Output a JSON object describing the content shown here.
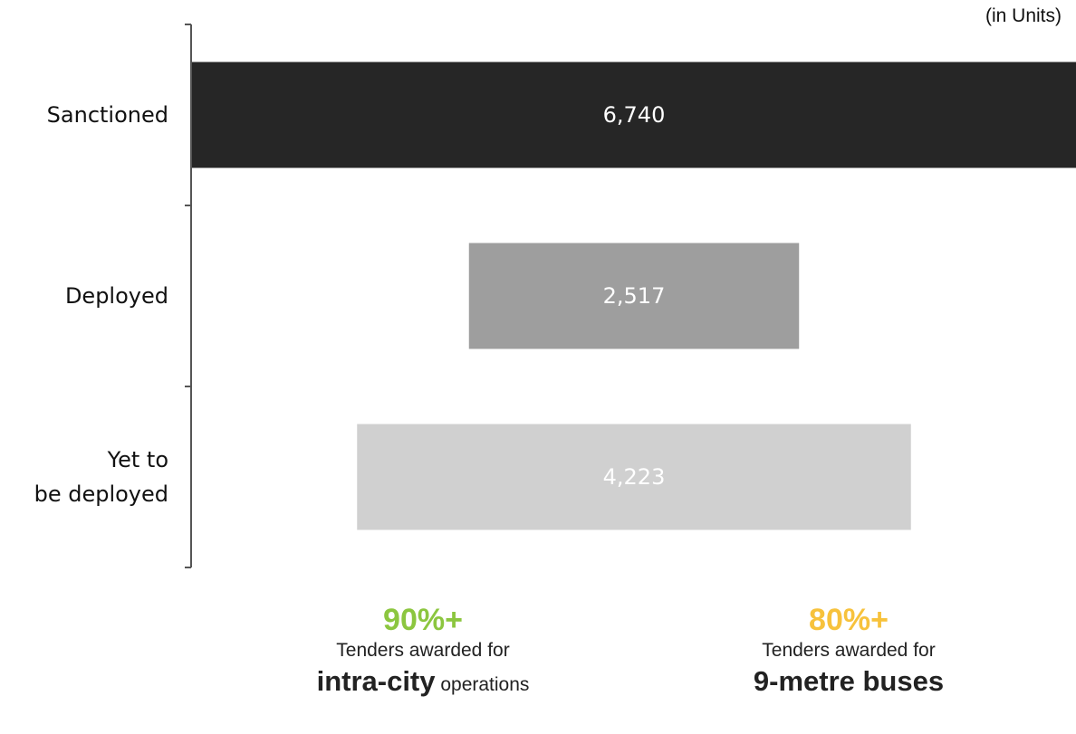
{
  "unit_note": "(in Units)",
  "colors": {
    "sanctioned": "#262626",
    "deployed": "#9e9e9e",
    "yet_to_be_deployed": "#d0d0d0",
    "bar_label": "#ffffff",
    "stat_green": "#8cc63f",
    "stat_yellow": "#f7c23c",
    "axis": "#555555"
  },
  "chart_data": {
    "type": "bar",
    "orientation": "horizontal",
    "style": "funnel (bars centered)",
    "categories": [
      "Sanctioned",
      "Deployed",
      "Yet to be deployed"
    ],
    "category_lines": [
      [
        "Sanctioned"
      ],
      [
        "Deployed"
      ],
      [
        "Yet to",
        "be deployed"
      ]
    ],
    "values": [
      6740,
      2517,
      4223
    ],
    "value_labels": [
      "6,740",
      "2,517",
      "4,223"
    ],
    "unit": "(in Units)",
    "grid": false,
    "legend": "none"
  },
  "stats": [
    {
      "percent": "90%+",
      "line1": "Tenders awarded for",
      "line2_bold": "intra-city",
      "line2_rest": " operations",
      "color": "#8cc63f"
    },
    {
      "percent": "80%+",
      "line1": "Tenders awarded for",
      "line2_bold": "9-metre buses",
      "line2_rest": "",
      "color": "#f7c23c"
    }
  ]
}
